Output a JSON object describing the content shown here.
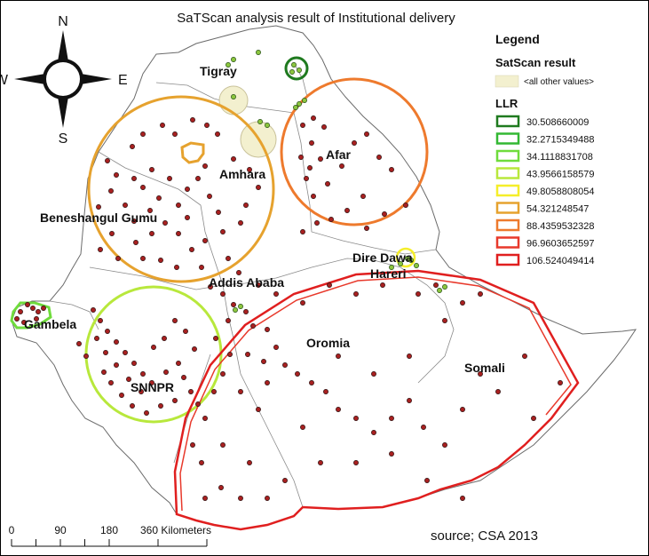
{
  "title": "SaTScan analysis result of Institutional delivery",
  "compass": {
    "north": "N",
    "south": "S",
    "east": "E",
    "west": "W"
  },
  "regions": [
    {
      "name": "Tigray"
    },
    {
      "name": "Afar"
    },
    {
      "name": "Amhara"
    },
    {
      "name": "Beneshangul Gumu"
    },
    {
      "name": "Addis Ababa"
    },
    {
      "name": "Dire Dawa"
    },
    {
      "name": "Hareri"
    },
    {
      "name": "Gambela"
    },
    {
      "name": "Oromia"
    },
    {
      "name": "Somali"
    },
    {
      "name": "SNNPR"
    }
  ],
  "legend": {
    "title": "Legend",
    "satscan_heading": "SatScan result",
    "other_values_label": "<all other values>",
    "other_values_color": "#f3f0cf",
    "llr_heading": "LLR",
    "llr_items": [
      {
        "value": "30.508660009",
        "color": "#1f7a1f"
      },
      {
        "value": "32.2715349488",
        "color": "#33b833"
      },
      {
        "value": "34.1118831708",
        "color": "#6fdc3c"
      },
      {
        "value": "43.9566158579",
        "color": "#b8e83c"
      },
      {
        "value": "49.8058808054",
        "color": "#f5ee2a"
      },
      {
        "value": "54.321248547",
        "color": "#e6a22e"
      },
      {
        "value": "88.4359532328",
        "color": "#ee7a2d"
      },
      {
        "value": "96.9603652597",
        "color": "#e8392b"
      },
      {
        "value": "106.524049414",
        "color": "#e01f1f"
      }
    ]
  },
  "scale_bar": {
    "labels": [
      "0",
      "90",
      "180",
      "360 Kilometers"
    ],
    "ticks_km": [
      0,
      45,
      90,
      135,
      180,
      270,
      360
    ]
  },
  "source": "source; CSA 2013",
  "colors": {
    "country_outline": "#6b6b6b",
    "point_fill": "#a82020",
    "point_stroke": "#2a0f0f",
    "secondary_point_fill": "#8cc63f"
  }
}
